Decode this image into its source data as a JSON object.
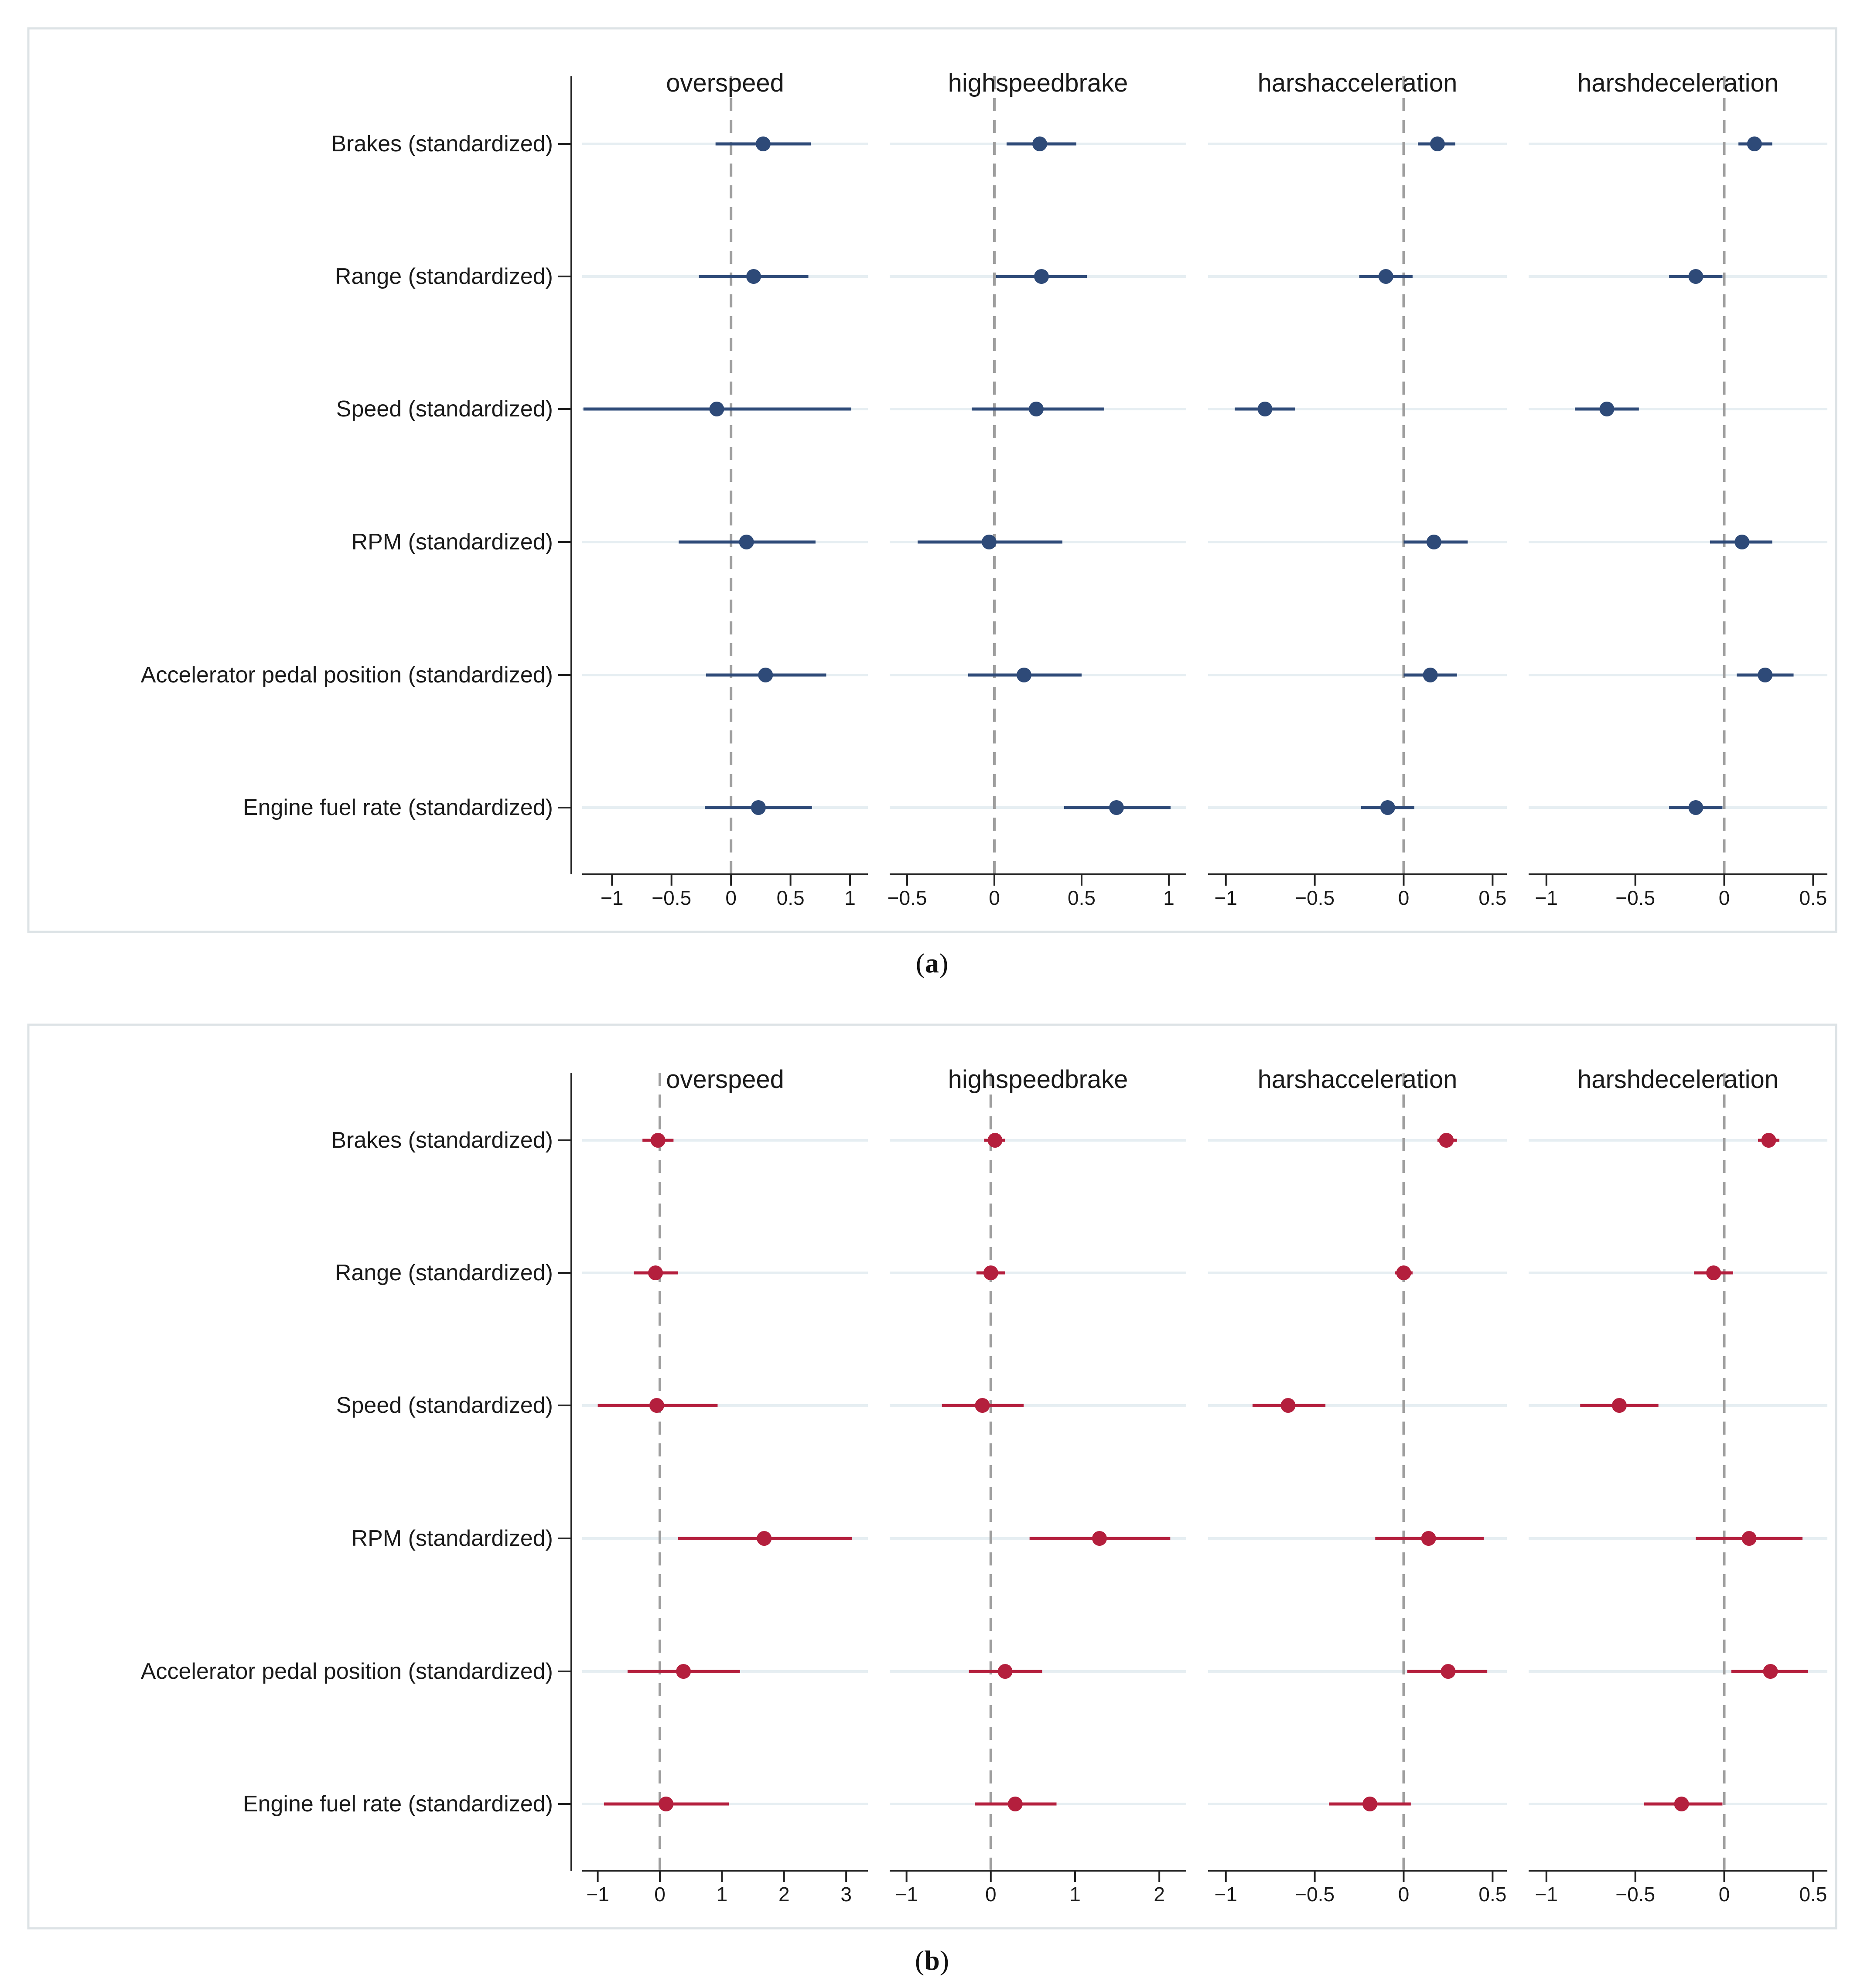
{
  "figure": {
    "caption_a_letter": "a",
    "caption_b_letter": "b"
  },
  "chart_data": [
    {
      "type": "scatter",
      "id": "a",
      "color": "#2e4a78",
      "categories": [
        "Brakes (standardized)",
        "Range (standardized)",
        "Speed (standardized)",
        "RPM (standardized)",
        "Accelerator pedal position (standardized)",
        "Engine fuel rate (standardized)"
      ],
      "panels": [
        {
          "title": "overspeed",
          "xlim": [
            -1.25,
            1.15
          ],
          "ticks": [
            -1,
            -0.5,
            0,
            0.5,
            1
          ],
          "tick_labels": [
            "−1",
            "−0.5",
            "0",
            "0.5",
            "1"
          ],
          "points": [
            {
              "est": 0.27,
              "lo": -0.13,
              "hi": 0.67
            },
            {
              "est": 0.19,
              "lo": -0.27,
              "hi": 0.65
            },
            {
              "est": -0.12,
              "lo": -1.24,
              "hi": 1.01
            },
            {
              "est": 0.13,
              "lo": -0.44,
              "hi": 0.71
            },
            {
              "est": 0.29,
              "lo": -0.21,
              "hi": 0.8
            },
            {
              "est": 0.23,
              "lo": -0.22,
              "hi": 0.68
            }
          ]
        },
        {
          "title": "highspeedbrake",
          "xlim": [
            -0.6,
            1.1
          ],
          "ticks": [
            -0.5,
            0,
            0.5,
            1
          ],
          "tick_labels": [
            "−0.5",
            "0",
            "0.5",
            "1"
          ],
          "points": [
            {
              "est": 0.26,
              "lo": 0.07,
              "hi": 0.47
            },
            {
              "est": 0.27,
              "lo": 0.01,
              "hi": 0.53
            },
            {
              "est": 0.24,
              "lo": -0.13,
              "hi": 0.63
            },
            {
              "est": -0.03,
              "lo": -0.44,
              "hi": 0.39
            },
            {
              "est": 0.17,
              "lo": -0.15,
              "hi": 0.5
            },
            {
              "est": 0.7,
              "lo": 0.4,
              "hi": 1.01
            }
          ]
        },
        {
          "title": "harshacceleration",
          "xlim": [
            -1.1,
            0.58
          ],
          "ticks": [
            -1,
            -0.5,
            0,
            0.5
          ],
          "tick_labels": [
            "−1",
            "−0.5",
            "0",
            "0.5"
          ],
          "points": [
            {
              "est": 0.19,
              "lo": 0.08,
              "hi": 0.29
            },
            {
              "est": -0.1,
              "lo": -0.25,
              "hi": 0.05
            },
            {
              "est": -0.78,
              "lo": -0.95,
              "hi": -0.61
            },
            {
              "est": 0.17,
              "lo": 0.0,
              "hi": 0.36
            },
            {
              "est": 0.15,
              "lo": 0.0,
              "hi": 0.3
            },
            {
              "est": -0.09,
              "lo": -0.24,
              "hi": 0.06
            }
          ]
        },
        {
          "title": "harshdeceleration",
          "xlim": [
            -1.1,
            0.58
          ],
          "ticks": [
            -1,
            -0.5,
            0,
            0.5
          ],
          "tick_labels": [
            "−1",
            "−0.5",
            "0",
            "0.5"
          ],
          "points": [
            {
              "est": 0.17,
              "lo": 0.08,
              "hi": 0.27
            },
            {
              "est": -0.16,
              "lo": -0.31,
              "hi": -0.01
            },
            {
              "est": -0.66,
              "lo": -0.84,
              "hi": -0.48
            },
            {
              "est": 0.1,
              "lo": -0.08,
              "hi": 0.27
            },
            {
              "est": 0.23,
              "lo": 0.07,
              "hi": 0.39
            },
            {
              "est": -0.16,
              "lo": -0.31,
              "hi": -0.01
            }
          ]
        }
      ]
    },
    {
      "type": "scatter",
      "id": "b",
      "color": "#b41f3d",
      "categories": [
        "Brakes (standardized)",
        "Range (standardized)",
        "Speed (standardized)",
        "RPM (standardized)",
        "Accelerator pedal position (standardized)",
        "Engine fuel rate (standardized)"
      ],
      "panels": [
        {
          "title": "overspeed",
          "xlim": [
            -1.25,
            3.35
          ],
          "ticks": [
            -1,
            0,
            1,
            2,
            3
          ],
          "tick_labels": [
            "−1",
            "0",
            "1",
            "2",
            "3"
          ],
          "points": [
            {
              "est": -0.03,
              "lo": -0.28,
              "hi": 0.22
            },
            {
              "est": -0.07,
              "lo": -0.42,
              "hi": 0.29
            },
            {
              "est": -0.05,
              "lo": -1.0,
              "hi": 0.93
            },
            {
              "est": 1.68,
              "lo": 0.29,
              "hi": 3.09
            },
            {
              "est": 0.38,
              "lo": -0.52,
              "hi": 1.29
            },
            {
              "est": 0.1,
              "lo": -0.9,
              "hi": 1.11
            }
          ]
        },
        {
          "title": "highspeedbrake",
          "xlim": [
            -1.2,
            2.32
          ],
          "ticks": [
            -1,
            0,
            1,
            2
          ],
          "tick_labels": [
            "−1",
            "0",
            "1",
            "2"
          ],
          "points": [
            {
              "est": 0.05,
              "lo": -0.08,
              "hi": 0.17
            },
            {
              "est": 0.0,
              "lo": -0.17,
              "hi": 0.17
            },
            {
              "est": -0.1,
              "lo": -0.58,
              "hi": 0.39
            },
            {
              "est": 1.29,
              "lo": 0.46,
              "hi": 2.13
            },
            {
              "est": 0.17,
              "lo": -0.26,
              "hi": 0.61
            },
            {
              "est": 0.29,
              "lo": -0.19,
              "hi": 0.78
            }
          ]
        },
        {
          "title": "harshacceleration",
          "xlim": [
            -1.1,
            0.58
          ],
          "ticks": [
            -1,
            -0.5,
            0,
            0.5
          ],
          "tick_labels": [
            "−1",
            "−0.5",
            "0",
            "0.5"
          ],
          "points": [
            {
              "est": 0.24,
              "lo": 0.19,
              "hi": 0.3
            },
            {
              "est": 0.0,
              "lo": -0.05,
              "hi": 0.05
            },
            {
              "est": -0.65,
              "lo": -0.85,
              "hi": -0.44
            },
            {
              "est": 0.14,
              "lo": -0.16,
              "hi": 0.45
            },
            {
              "est": 0.25,
              "lo": 0.02,
              "hi": 0.47
            },
            {
              "est": -0.19,
              "lo": -0.42,
              "hi": 0.04
            }
          ]
        },
        {
          "title": "harshdeceleration",
          "xlim": [
            -1.1,
            0.58
          ],
          "ticks": [
            -1,
            -0.5,
            0,
            0.5
          ],
          "tick_labels": [
            "−1",
            "−0.5",
            "0",
            "0.5"
          ],
          "points": [
            {
              "est": 0.25,
              "lo": 0.19,
              "hi": 0.31
            },
            {
              "est": -0.06,
              "lo": -0.17,
              "hi": 0.05
            },
            {
              "est": -0.59,
              "lo": -0.81,
              "hi": -0.37
            },
            {
              "est": 0.14,
              "lo": -0.16,
              "hi": 0.44
            },
            {
              "est": 0.26,
              "lo": 0.04,
              "hi": 0.47
            },
            {
              "est": -0.24,
              "lo": -0.45,
              "hi": -0.01
            }
          ]
        }
      ]
    }
  ]
}
